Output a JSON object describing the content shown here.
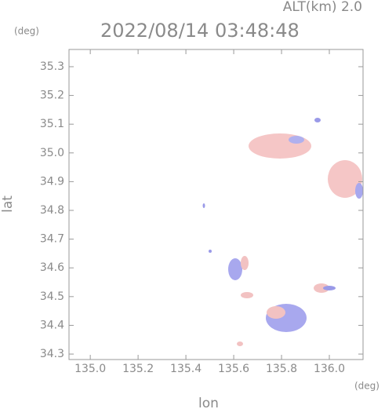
{
  "chart_data": {
    "type": "map",
    "title": "2022/08/14 03:48:48",
    "altitude_label": "ALT(km) 2.0",
    "y_unit": "(deg)",
    "x_unit": "(deg)",
    "xlabel": "lon",
    "ylabel": "lat",
    "xlim": [
      134.911,
      136.141
    ],
    "ylim": [
      34.281,
      35.36
    ],
    "xticks": [
      {
        "value": 135,
        "label": "135.0"
      },
      135.2,
      135.4,
      135.6,
      135.8,
      {
        "value": 136,
        "label": "136.0"
      }
    ],
    "yticks": [
      35.3,
      35.2,
      35.1,
      {
        "value": 35,
        "label": "35.0"
      },
      34.9,
      34.8,
      34.7,
      34.6,
      34.5,
      34.4,
      34.3
    ]
  }
}
